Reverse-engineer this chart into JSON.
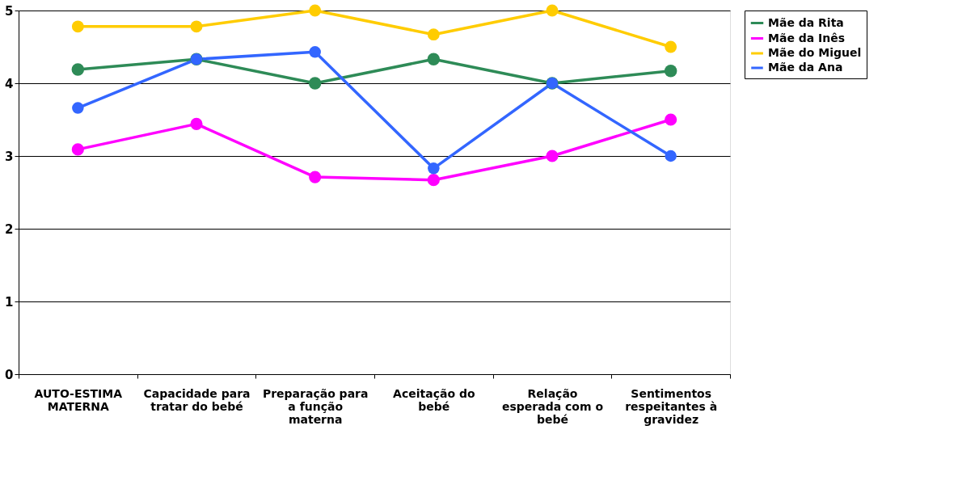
{
  "chart_data": {
    "type": "line",
    "categories": [
      "AUTO-ESTIMA MATERNA",
      "Capacidade para tratar do bebé",
      "Preparação para a função materna",
      "Aceitação do bebé",
      "Relação esperada com o bebé",
      "Sentimentos respeitantes à gravidez"
    ],
    "series": [
      {
        "name": "Mãe da Rita",
        "color": "#2e8b57",
        "values": [
          4.19,
          4.33,
          4.0,
          4.33,
          4.0,
          4.17
        ]
      },
      {
        "name": "Mãe da Inês",
        "color": "#ff00ff",
        "values": [
          3.09,
          3.44,
          2.71,
          2.67,
          3.0,
          3.5
        ]
      },
      {
        "name": "Mãe do Miguel",
        "color": "#ffcc00",
        "values": [
          4.78,
          4.78,
          5.0,
          4.67,
          5.0,
          4.5
        ]
      },
      {
        "name": "Mãe da Ana",
        "color": "#3366ff",
        "values": [
          3.66,
          4.33,
          4.43,
          2.83,
          4.0,
          3.0
        ]
      }
    ],
    "ylim": [
      0,
      5
    ],
    "yticks": [
      0,
      1,
      2,
      3,
      4,
      5
    ],
    "grid": "y",
    "legend": "right",
    "marker": "circle",
    "line_style": "solid"
  }
}
